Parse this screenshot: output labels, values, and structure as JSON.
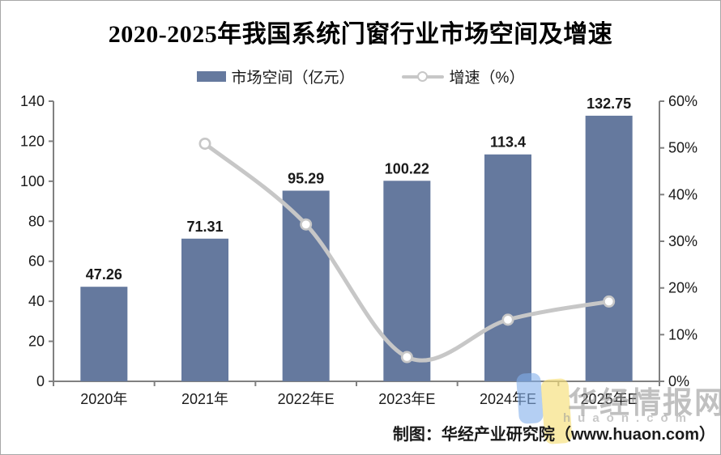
{
  "title": "2020-2025年我国系统门窗行业市场空间及增速",
  "legend": {
    "bar_label": "市场空间（亿元）",
    "line_label": "增速（%）"
  },
  "caption": "制图：华经产业研究院（www.huaon.com）",
  "watermark": {
    "brand": "华经情报网",
    "domain": "huaon.com"
  },
  "colors": {
    "bar": "#65799E",
    "line": "#c7c7c7",
    "marker_fill": "#ffffff",
    "axis": "#808080",
    "text": "#1a1a1a"
  },
  "chart_data": {
    "type": "bar",
    "subtype": "bar+line-combo",
    "categories": [
      "2020年",
      "2021年",
      "2022年E",
      "2023年E",
      "2024年E",
      "2025年E"
    ],
    "series": [
      {
        "name": "市场空间（亿元）",
        "type": "bar",
        "axis": "left",
        "values": [
          47.26,
          71.31,
          95.29,
          100.22,
          113.4,
          132.75
        ],
        "labels": [
          "47.26",
          "71.31",
          "95.29",
          "100.22",
          "113.4",
          "132.75"
        ]
      },
      {
        "name": "增速（%）",
        "type": "line",
        "axis": "right",
        "values": [
          null,
          50.9,
          33.6,
          5.2,
          13.2,
          17.1
        ]
      }
    ],
    "title": "2020-2025年我国系统门窗行业市场空间及增速",
    "xlabel": "",
    "ylabel_left": "市场空间（亿元）",
    "ylabel_right": "增速（%）",
    "left_axis": {
      "min": 0,
      "max": 140,
      "step": 20
    },
    "right_axis": {
      "min": 0,
      "max": 60,
      "step": 10,
      "suffix": "%"
    },
    "grid": false,
    "legend_position": "top"
  }
}
